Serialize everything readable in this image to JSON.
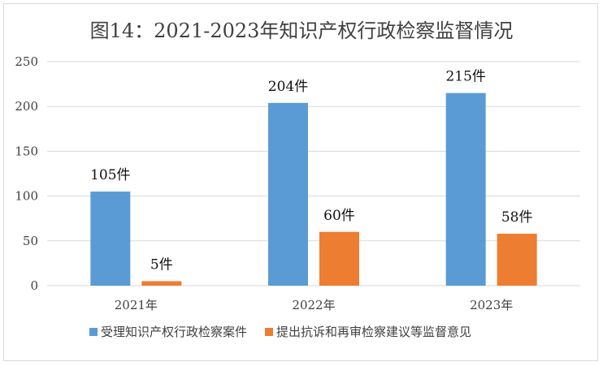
{
  "chart_data": {
    "type": "bar",
    "title": "图14：2021-2023年知识产权行政检察监督情况",
    "xlabel": "",
    "ylabel": "",
    "categories": [
      "2021年",
      "2022年",
      "2023年"
    ],
    "ylim": [
      0,
      250
    ],
    "yticks": [
      0,
      50,
      100,
      150,
      200,
      250
    ],
    "grid": true,
    "legend_position": "bottom",
    "series": [
      {
        "name": "受理知识产权行政检察案件",
        "color": "#5b9bd5",
        "values": [
          105,
          204,
          215
        ],
        "labels": [
          "105件",
          "204件",
          "215件"
        ]
      },
      {
        "name": "提出抗诉和再审检察建议等监督意见",
        "color": "#ed7d31",
        "values": [
          5,
          60,
          58
        ],
        "labels": [
          "5件",
          "60件",
          "58件"
        ]
      }
    ]
  }
}
